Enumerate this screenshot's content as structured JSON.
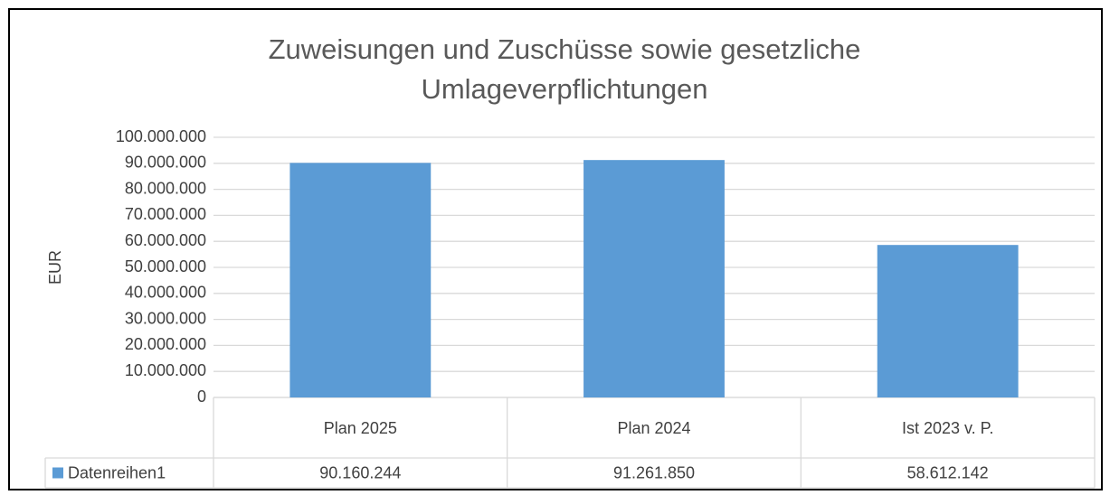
{
  "chart_data": {
    "type": "bar",
    "title": "Zuweisungen und Zuschüsse sowie gesetzliche Umlageverpflichtungen",
    "y_label": "EUR",
    "categories": [
      "Plan 2025",
      "Plan 2024",
      "Ist 2023 v. P."
    ],
    "series": [
      {
        "name": "Datenreihen1",
        "color": "#5b9bd5",
        "values": [
          90160244,
          91261850,
          58612142
        ],
        "value_labels": [
          "90.160.244",
          "91.261.850",
          "58.612.142"
        ]
      }
    ],
    "ylim": [
      0,
      100000000
    ],
    "yticks": [
      0,
      {
        "value": 10000000,
        "label": "10.000.000"
      },
      {
        "value": 20000000,
        "label": "20.000.000"
      },
      {
        "value": 30000000,
        "label": "30.000.000"
      },
      {
        "value": 40000000,
        "label": "40.000.000"
      },
      {
        "value": 50000000,
        "label": "50.000.000"
      },
      {
        "value": 60000000,
        "label": "60.000.000"
      },
      {
        "value": 70000000,
        "label": "70.000.000"
      },
      {
        "value": 80000000,
        "label": "80.000.000"
      },
      {
        "value": 90000000,
        "label": "90.000.000"
      },
      {
        "value": 100000000,
        "label": "100.000.000"
      }
    ],
    "grid": true,
    "data_table": true
  }
}
